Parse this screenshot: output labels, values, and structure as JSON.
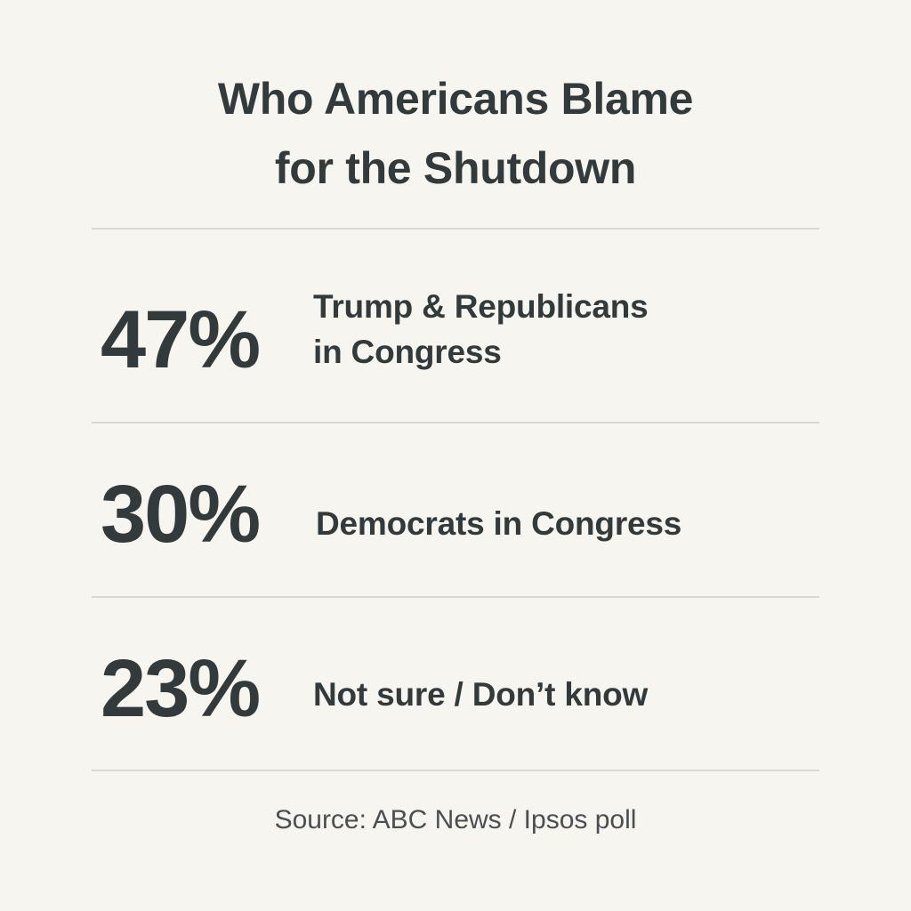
{
  "chart_data": {
    "type": "table",
    "title_lines": [
      "Who Americans Blame",
      "for the Shutdown"
    ],
    "rows": [
      {
        "value": 47,
        "value_label": "47%",
        "label_lines": [
          "Trump & Republicans",
          "in Congress"
        ]
      },
      {
        "value": 30,
        "value_label": "30%",
        "label_lines": [
          "Democrats in Congress"
        ]
      },
      {
        "value": 23,
        "value_label": "23%",
        "label_lines": [
          "Not sure / Don’t know"
        ]
      }
    ],
    "source": "Source: ABC News / Ipsos poll"
  }
}
